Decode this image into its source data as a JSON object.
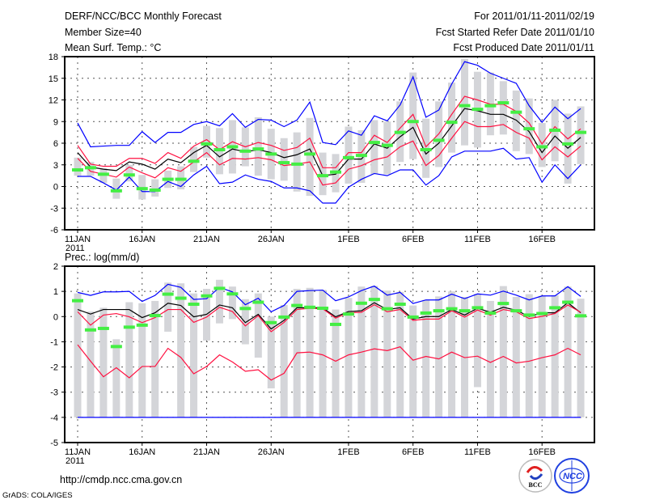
{
  "header": {
    "title": "DERF/NCC/BCC Monthly Forecast",
    "member_size": "Member Size=40",
    "variable": "Mean Surf. Temp.: °C",
    "period": "For 2011/01/11-2011/02/19",
    "start_date": "Fcst Started Refer Date 2011/01/10",
    "produced_date": "Fcst Produced Date 2011/01/11"
  },
  "footer": {
    "url": "http://cmdp.ncc.cma.gov.cn",
    "credit": "GrADS: COLA/IGES",
    "logos": [
      "BCC",
      "NCC"
    ]
  },
  "colors": {
    "max_min": "#0000ff",
    "spread": "#ff1040",
    "mean": "#000000",
    "obs": "#44ee44",
    "box": "#d4d5d9"
  },
  "chart_data": [
    {
      "type": "line",
      "title": "Mean Surf. Temp.: °C",
      "x_start": "2011-01-11",
      "n_days": 40,
      "xtick_labels": [
        {
          "day": 0,
          "label": "11JAN"
        },
        {
          "day": 5,
          "label": "16JAN"
        },
        {
          "day": 10,
          "label": "21JAN"
        },
        {
          "day": 15,
          "label": "26JAN"
        },
        {
          "day": 21,
          "label": "1FEB"
        },
        {
          "day": 26,
          "label": "6FEB"
        },
        {
          "day": 31,
          "label": "11FEB"
        },
        {
          "day": 36,
          "label": "16FEB"
        }
      ],
      "year_label": "2011",
      "ylim": [
        -6,
        18
      ],
      "yticks": [
        -6,
        -3,
        0,
        3,
        6,
        9,
        12,
        15,
        18
      ],
      "grid": true,
      "boxes": {
        "low": [
          1.5,
          1.5,
          0.5,
          -1.7,
          0.7,
          -1.8,
          -1.4,
          -0.2,
          -0.4,
          2.0,
          4.0,
          1.7,
          1.8,
          2.8,
          1.5,
          1.0,
          0.8,
          -0.7,
          -1.3,
          -1.2,
          -0.8,
          0.4,
          0.5,
          1.7,
          1.7,
          3.4,
          3.8,
          1.2,
          2.7,
          4.7,
          5.7,
          5.4,
          7.1,
          7.2,
          4.9,
          4.5,
          2.7,
          3.5,
          0.4,
          3.1
        ],
        "high": [
          4.0,
          3.4,
          2.5,
          1.1,
          3.0,
          1.6,
          1.0,
          2.2,
          2.8,
          5.5,
          8.4,
          8.1,
          9.2,
          8.2,
          9.6,
          8.0,
          6.7,
          7.5,
          9.5,
          4.7,
          4.5,
          8.3,
          7.8,
          9.2,
          9.0,
          11.8,
          15.8,
          9.4,
          11.8,
          14.4,
          17.7,
          15.9,
          15.8,
          14.6,
          13.3,
          12.2,
          8.8,
          12.0,
          10.1,
          11.1
        ]
      },
      "series": [
        {
          "name": "max",
          "color": "#0000ff",
          "values": [
            8.8,
            5.5,
            5.6,
            5.7,
            5.7,
            7.6,
            6.1,
            7.5,
            7.5,
            8.6,
            9.0,
            8.4,
            10.1,
            8.2,
            9.3,
            9.2,
            8.3,
            9.2,
            11.7,
            6.1,
            5.8,
            7.7,
            7.1,
            9.8,
            9.1,
            11.3,
            15.2,
            9.6,
            10.6,
            14.2,
            17.3,
            16.8,
            15.7,
            15.0,
            14.3,
            11.2,
            8.9,
            11.0,
            9.4,
            10.8
          ]
        },
        {
          "name": "upper",
          "color": "#ff1040",
          "values": [
            5.7,
            3.1,
            2.8,
            2.8,
            3.9,
            3.9,
            3.2,
            4.7,
            3.9,
            5.6,
            6.5,
            5.1,
            6.2,
            5.5,
            6.1,
            5.7,
            5.0,
            5.4,
            6.7,
            2.6,
            2.6,
            4.7,
            4.7,
            7.1,
            6.1,
            8.1,
            10.0,
            5.5,
            7.3,
            10.0,
            12.5,
            12.0,
            11.4,
            11.4,
            10.4,
            8.8,
            5.9,
            8.3,
            6.6,
            8.0
          ]
        },
        {
          "name": "mean",
          "color": "#000000",
          "values": [
            4.7,
            2.7,
            2.4,
            2.2,
            3.4,
            3.1,
            2.4,
            3.8,
            3.3,
            4.7,
            5.7,
            4.1,
            5.2,
            4.8,
            5.1,
            4.7,
            4.0,
            4.4,
            5.2,
            1.5,
            1.7,
            3.8,
            3.8,
            5.9,
            5.3,
            6.9,
            8.2,
            4.5,
            6.0,
            8.4,
            10.8,
            10.5,
            10.0,
            10.0,
            9.2,
            7.6,
            4.7,
            7.0,
            5.3,
            6.8
          ]
        },
        {
          "name": "lower",
          "color": "#ff1040",
          "values": [
            3.9,
            2.1,
            1.7,
            1.3,
            2.7,
            1.9,
            1.2,
            2.6,
            2.1,
            3.4,
            4.7,
            3.0,
            3.9,
            3.8,
            4.0,
            3.7,
            2.9,
            3.1,
            3.4,
            0.2,
            0.5,
            2.4,
            2.9,
            3.7,
            4.1,
            5.5,
            6.3,
            2.9,
            4.3,
            6.7,
            9.0,
            8.3,
            8.3,
            8.6,
            7.5,
            6.7,
            3.7,
            5.5,
            4.1,
            5.6
          ]
        },
        {
          "name": "min",
          "color": "#0000ff",
          "values": [
            1.4,
            1.4,
            0.5,
            -0.5,
            1.3,
            -0.7,
            -0.7,
            0.7,
            0.0,
            1.6,
            2.8,
            0.4,
            0.6,
            1.6,
            1.0,
            0.7,
            -0.2,
            -0.2,
            -0.6,
            -2.3,
            -2.3,
            -0.1,
            1.0,
            1.8,
            1.5,
            2.3,
            2.3,
            0.2,
            1.5,
            4.1,
            4.9,
            4.9,
            4.9,
            5.3,
            3.8,
            4.0,
            0.6,
            3.0,
            1.1,
            3.0
          ]
        }
      ],
      "observed": {
        "name": "obs",
        "color": "#44ee44",
        "values": [
          2.3,
          2.6,
          1.7,
          -0.6,
          1.6,
          -0.3,
          -0.5,
          1.0,
          1.0,
          3.5,
          5.9,
          5.1,
          5.5,
          4.9,
          5.2,
          4.5,
          3.3,
          3.1,
          4.5,
          1.5,
          2.0,
          4.0,
          4.3,
          6.1,
          5.7,
          7.5,
          9.0,
          5.1,
          6.4,
          8.9,
          11.2,
          10.7,
          11.2,
          11.6,
          10.3,
          8.0,
          5.5,
          7.8,
          5.9,
          7.5
        ]
      }
    },
    {
      "type": "line",
      "title": "Prec.: log(mm/d)",
      "x_start": "2011-01-11",
      "n_days": 40,
      "ylim": [
        -5,
        2
      ],
      "yticks": [
        -5,
        -4,
        -3,
        -2,
        -1,
        0,
        1,
        2
      ],
      "grid": true,
      "boxes": {
        "low": [
          -4,
          -4,
          -4,
          -4,
          -4,
          -4,
          -4,
          -0.6,
          -4,
          -4,
          -0.95,
          -0.27,
          -0.1,
          -1.1,
          -1.63,
          -2.85,
          -4,
          -4,
          -4,
          -4,
          -4,
          -4,
          -4,
          -4,
          -4,
          -4,
          -4,
          -4,
          -4,
          -4,
          -4,
          -2.8,
          -4,
          -4,
          -4,
          -4,
          -4,
          -4,
          -4,
          -4
        ],
        "high": [
          0.92,
          0.2,
          0.35,
          -0.9,
          0.57,
          0.53,
          0.62,
          1.35,
          1.32,
          0.92,
          1.1,
          1.46,
          1.19,
          0.69,
          0.92,
          0.0,
          0.46,
          1.1,
          1.14,
          1.06,
          0.28,
          0.74,
          1.19,
          1.22,
          1.03,
          0.98,
          0.44,
          0.66,
          0.8,
          1.0,
          0.78,
          0.9,
          0.62,
          1.21,
          0.78,
          0.89,
          0.82,
          0.85,
          1.19,
          0.71
        ]
      },
      "series": [
        {
          "name": "max",
          "color": "#0000ff",
          "values": [
            0.96,
            0.84,
            0.98,
            0.98,
            1.0,
            0.6,
            0.84,
            1.28,
            1.16,
            0.68,
            0.71,
            1.16,
            0.98,
            0.47,
            0.73,
            0.19,
            0.44,
            1.0,
            1.03,
            1.05,
            0.63,
            0.78,
            1.03,
            1.21,
            0.85,
            0.96,
            0.52,
            0.66,
            0.66,
            0.89,
            0.71,
            0.9,
            0.85,
            1.01,
            0.85,
            0.66,
            0.82,
            0.82,
            1.19,
            0.8
          ]
        },
        {
          "name": "mean",
          "color": "#000000",
          "values": [
            0.28,
            0.1,
            0.28,
            0.28,
            0.28,
            -0.04,
            0.15,
            0.53,
            0.44,
            -0.01,
            0.09,
            0.46,
            0.35,
            -0.24,
            0.09,
            -0.49,
            -0.15,
            0.35,
            0.35,
            0.35,
            -0.01,
            0.2,
            0.23,
            0.55,
            0.28,
            0.35,
            -0.1,
            0.0,
            0.0,
            0.28,
            0.06,
            0.33,
            0.17,
            0.37,
            0.25,
            0.0,
            0.15,
            0.15,
            0.55,
            0.15
          ]
        },
        {
          "name": "upper",
          "color": "#ff1040",
          "values": [
            0.19,
            -0.34,
            0.06,
            0.12,
            -0.01,
            -0.24,
            -0.04,
            0.28,
            0.28,
            -0.23,
            -0.02,
            0.37,
            0.2,
            -0.37,
            0.04,
            -0.6,
            -0.23,
            0.28,
            0.33,
            0.31,
            -0.06,
            0.15,
            0.17,
            0.47,
            0.19,
            0.28,
            -0.15,
            -0.1,
            -0.1,
            0.23,
            -0.02,
            0.26,
            0.06,
            0.28,
            0.19,
            -0.08,
            0.01,
            0.12,
            0.46,
            0.17
          ]
        },
        {
          "name": "lower",
          "color": "#ff1040",
          "values": [
            -1.12,
            -1.77,
            -2.39,
            -2.03,
            -2.43,
            -1.98,
            -1.98,
            -1.26,
            -1.62,
            -2.27,
            -1.98,
            -1.52,
            -1.8,
            -2.17,
            -2.11,
            -2.52,
            -2.25,
            -1.44,
            -1.41,
            -1.52,
            -1.77,
            -1.52,
            -1.41,
            -1.28,
            -1.35,
            -1.2,
            -1.73,
            -1.58,
            -1.68,
            -1.41,
            -1.63,
            -1.57,
            -1.82,
            -1.58,
            -1.84,
            -1.77,
            -1.63,
            -1.52,
            -1.26,
            -1.52
          ]
        },
        {
          "name": "min",
          "color": "#0000ff",
          "values": [
            -4,
            -4,
            -4,
            -4,
            -4,
            -4,
            -4,
            -4,
            -4,
            -4,
            -4,
            -4,
            -4,
            -4,
            -4,
            -4,
            -4,
            -4,
            -4,
            -4,
            -4,
            -4,
            -4,
            -4,
            -4,
            -4,
            -4,
            -4,
            -4,
            -4,
            -4,
            -4,
            -4,
            -4,
            -4,
            -4,
            -4,
            -4,
            -4,
            -4
          ]
        }
      ],
      "observed": {
        "name": "obs",
        "color": "#44ee44",
        "values": [
          0.63,
          -0.53,
          -0.47,
          -1.19,
          -0.42,
          -0.34,
          0.04,
          0.89,
          0.73,
          0.49,
          0.82,
          1.12,
          0.9,
          0.32,
          0.57,
          -0.24,
          -0.02,
          0.44,
          0.37,
          0.33,
          -0.31,
          0.1,
          0.53,
          0.68,
          0.31,
          0.49,
          -0.02,
          0.14,
          0.23,
          0.31,
          0.23,
          0.35,
          0.14,
          0.52,
          0.23,
          0.06,
          0.12,
          0.35,
          0.57,
          0.03
        ]
      }
    }
  ]
}
